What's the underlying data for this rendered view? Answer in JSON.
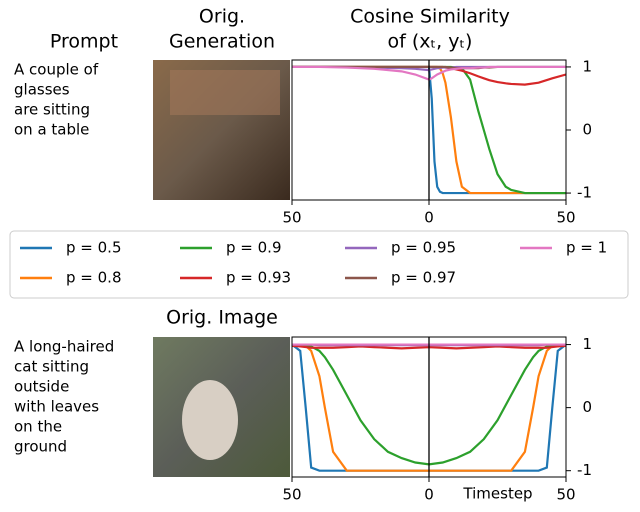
{
  "headings": {
    "prompt": "Prompt",
    "generation": [
      "Orig.",
      "Generation"
    ]
  },
  "chart_data": [
    {
      "type": "line",
      "title": [
        "Cosine Similarity",
        "of (xₜ, yₜ)"
      ],
      "prompt": [
        "A couple of",
        "glasses",
        "are sitting",
        "on a table"
      ],
      "x": [
        -50,
        -40,
        -30,
        -20,
        -10,
        -5,
        0,
        1,
        2,
        3,
        4,
        5,
        6,
        8,
        10,
        12,
        15,
        18,
        20,
        22,
        25,
        28,
        30,
        35,
        40,
        45,
        50
      ],
      "xlim": [
        -50,
        50
      ],
      "xticks": [
        {
          "value": -50,
          "label": "50"
        },
        0,
        50
      ],
      "vlines": [
        0
      ],
      "ylim": [
        -1.11,
        1.11
      ],
      "yticks": [
        -1,
        0,
        1
      ],
      "series": [
        {
          "name": "p = 0.5",
          "color": "#1f77b4",
          "values": [
            1,
            1,
            1,
            1,
            1,
            1,
            1,
            0.5,
            -0.5,
            -0.9,
            -0.98,
            -1,
            -1,
            -1,
            -1,
            -1,
            -1,
            -1,
            -1,
            -1,
            -1,
            -1,
            -1,
            -1,
            -1,
            -1,
            -1
          ]
        },
        {
          "name": "p = 0.8",
          "color": "#ff7f0e",
          "values": [
            1,
            1,
            1,
            1,
            1,
            1,
            1,
            1,
            1,
            1,
            0.98,
            0.9,
            0.75,
            0.2,
            -0.5,
            -0.9,
            -1,
            -1,
            -1,
            -1,
            -1,
            -1,
            -1,
            -1,
            -1,
            -1,
            -1
          ]
        },
        {
          "name": "p = 0.9",
          "color": "#2ca02c",
          "values": [
            1,
            1,
            1,
            1,
            1,
            1,
            1,
            1,
            1,
            1,
            1,
            1,
            1,
            1,
            0.99,
            0.98,
            0.8,
            0.3,
            0,
            -0.3,
            -0.7,
            -0.9,
            -0.95,
            -1,
            -1,
            -1,
            -1
          ]
        },
        {
          "name": "p = 0.93",
          "color": "#d62728",
          "values": [
            1,
            1,
            1,
            1,
            1,
            1,
            1,
            1,
            1,
            1,
            1,
            1,
            0.99,
            0.98,
            0.96,
            0.94,
            0.9,
            0.85,
            0.82,
            0.79,
            0.76,
            0.74,
            0.73,
            0.72,
            0.75,
            0.82,
            0.88
          ]
        },
        {
          "name": "p = 0.95",
          "color": "#9467bd",
          "values": [
            1,
            1,
            1,
            0.99,
            0.98,
            0.97,
            0.95,
            0.96,
            0.97,
            0.98,
            0.98,
            0.99,
            0.99,
            0.99,
            1,
            1,
            1,
            1,
            1,
            1,
            1,
            1,
            1,
            1,
            1,
            1,
            1
          ]
        },
        {
          "name": "p = 0.97",
          "color": "#8c564b",
          "values": [
            1,
            1,
            1,
            1,
            1,
            1,
            1,
            1,
            1,
            1,
            1,
            1,
            1,
            0.99,
            0.98,
            0.98,
            0.98,
            0.98,
            0.99,
            0.99,
            1,
            1,
            1,
            1,
            1,
            1,
            1
          ]
        },
        {
          "name": "p = 1",
          "color": "#e377c2",
          "values": [
            1,
            1,
            0.99,
            0.97,
            0.93,
            0.88,
            0.8,
            0.82,
            0.85,
            0.88,
            0.9,
            0.92,
            0.94,
            0.96,
            0.97,
            0.98,
            0.98,
            0.99,
            0.99,
            1,
            1,
            1,
            1,
            1,
            1,
            1,
            1
          ]
        }
      ]
    },
    {
      "type": "line",
      "image_title": "Orig. Image",
      "prompt": [
        "A long-haired",
        "cat sitting",
        "outside",
        "with leaves",
        "on the",
        "ground"
      ],
      "xlabel": "Timestep",
      "x": [
        -50,
        -47,
        -45,
        -43,
        -40,
        -38,
        -35,
        -30,
        -25,
        -20,
        -15,
        -10,
        -5,
        0,
        5,
        10,
        15,
        20,
        25,
        30,
        35,
        38,
        40,
        43,
        45,
        47,
        50
      ],
      "xlim": [
        -50,
        50
      ],
      "xticks": [
        {
          "value": -50,
          "label": "50"
        },
        0,
        50
      ],
      "vlines": [
        0
      ],
      "ylim": [
        -1.1,
        1.12
      ],
      "yticks": [
        -1,
        0,
        1
      ],
      "series": [
        {
          "name": "p = 0.5",
          "color": "#1f77b4",
          "values": [
            1,
            0.9,
            0,
            -0.95,
            -1,
            -1,
            -1,
            -1,
            -1,
            -1,
            -1,
            -1,
            -1,
            -1,
            -1,
            -1,
            -1,
            -1,
            -1,
            -1,
            -1,
            -1,
            -1,
            -0.95,
            0,
            0.9,
            1
          ]
        },
        {
          "name": "p = 0.8",
          "color": "#ff7f0e",
          "values": [
            1,
            1,
            0.98,
            0.9,
            0.5,
            0,
            -0.7,
            -1,
            -1,
            -1,
            -1,
            -1,
            -1,
            -1,
            -1,
            -1,
            -1,
            -1,
            -1,
            -1,
            -0.7,
            0,
            0.5,
            0.9,
            0.98,
            1,
            1
          ]
        },
        {
          "name": "p = 0.9",
          "color": "#2ca02c",
          "values": [
            1,
            1,
            0.99,
            0.97,
            0.9,
            0.8,
            0.6,
            0.2,
            -0.2,
            -0.5,
            -0.7,
            -0.8,
            -0.87,
            -0.9,
            -0.87,
            -0.8,
            -0.7,
            -0.5,
            -0.2,
            0.2,
            0.6,
            0.8,
            0.9,
            0.97,
            0.99,
            1,
            1
          ]
        },
        {
          "name": "p = 0.93",
          "color": "#d62728",
          "values": [
            0.98,
            0.97,
            0.96,
            0.95,
            0.95,
            0.95,
            0.95,
            0.96,
            0.97,
            0.96,
            0.95,
            0.94,
            0.95,
            0.96,
            0.95,
            0.94,
            0.95,
            0.96,
            0.97,
            0.96,
            0.95,
            0.95,
            0.95,
            0.95,
            0.96,
            0.97,
            0.98
          ]
        },
        {
          "name": "p = 0.95",
          "color": "#9467bd",
          "values": [
            1,
            1,
            1,
            1,
            0.99,
            0.99,
            0.99,
            0.99,
            0.99,
            0.99,
            0.99,
            0.99,
            0.99,
            0.99,
            0.99,
            0.99,
            0.99,
            0.99,
            0.99,
            0.99,
            0.99,
            0.99,
            0.99,
            1,
            1,
            1,
            1
          ]
        },
        {
          "name": "p = 0.97",
          "color": "#8c564b",
          "values": [
            1,
            1,
            1,
            1,
            1,
            1,
            1,
            1,
            1,
            1,
            1,
            1,
            1,
            1,
            1,
            1,
            1,
            1,
            1,
            1,
            1,
            1,
            1,
            1,
            1,
            1,
            1
          ]
        },
        {
          "name": "p = 1",
          "color": "#e377c2",
          "values": [
            1,
            1,
            1,
            1,
            1,
            1,
            1,
            1,
            1,
            1,
            1,
            1,
            1,
            1,
            1,
            1,
            1,
            1,
            1,
            1,
            1,
            1,
            1,
            1,
            1,
            1,
            1
          ]
        }
      ]
    }
  ]
}
